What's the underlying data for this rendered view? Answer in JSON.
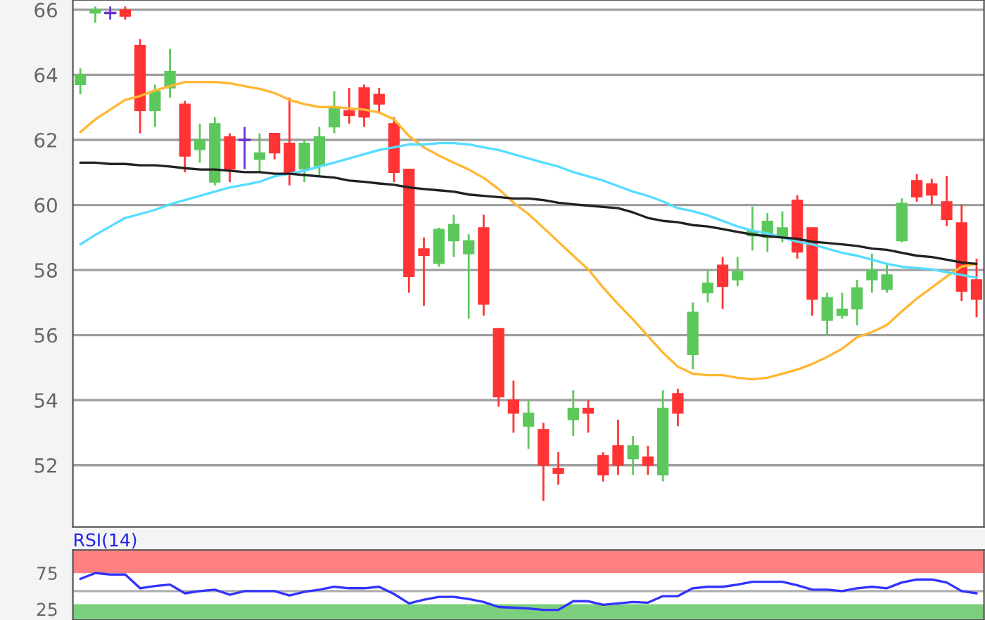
{
  "chart_data": [
    {
      "type": "candlestick",
      "categories": [
        null,
        null,
        null,
        null,
        null,
        null,
        null,
        null,
        null,
        null,
        null,
        null,
        null,
        null,
        null,
        null,
        null,
        null,
        null,
        null,
        null,
        null,
        null,
        null,
        null,
        null,
        null,
        null,
        null,
        null,
        null,
        null,
        null,
        null,
        null,
        null,
        null,
        null,
        null,
        null,
        null,
        null,
        null,
        null,
        null,
        null,
        null,
        null,
        null,
        null,
        null,
        null,
        null,
        null,
        null,
        null,
        null,
        null,
        null,
        null,
        null
      ],
      "ohlc": [
        [
          63.7,
          64.2,
          63.4,
          64.0
        ],
        [
          65.9,
          66.1,
          65.6,
          66.0
        ],
        [
          65.9,
          66.1,
          65.7,
          65.9
        ],
        [
          66.0,
          66.1,
          65.7,
          65.8
        ],
        [
          64.9,
          65.1,
          62.2,
          62.9
        ],
        [
          62.9,
          63.7,
          62.4,
          63.5
        ],
        [
          63.6,
          64.8,
          63.3,
          64.1
        ],
        [
          63.1,
          63.2,
          61.0,
          61.5
        ],
        [
          61.7,
          62.5,
          61.3,
          62.0
        ],
        [
          60.7,
          62.7,
          60.6,
          62.5
        ],
        [
          62.1,
          62.2,
          60.7,
          61.1
        ],
        [
          62.0,
          62.4,
          61.1,
          62.0
        ],
        [
          61.4,
          62.2,
          61.0,
          61.6
        ],
        [
          62.2,
          62.2,
          61.4,
          61.6
        ],
        [
          61.9,
          63.3,
          60.6,
          61.0
        ],
        [
          61.1,
          62.0,
          60.7,
          61.9
        ],
        [
          61.2,
          62.4,
          60.9,
          62.1
        ],
        [
          62.4,
          63.5,
          62.2,
          63.0
        ],
        [
          62.9,
          63.6,
          62.5,
          62.75
        ],
        [
          63.6,
          63.7,
          62.4,
          62.7
        ],
        [
          63.4,
          63.6,
          62.8,
          63.1
        ],
        [
          62.5,
          62.7,
          60.7,
          61.0
        ],
        [
          61.1,
          61.1,
          57.3,
          57.8
        ],
        [
          58.65,
          59.0,
          56.9,
          58.45
        ],
        [
          58.2,
          59.3,
          58.1,
          59.25
        ],
        [
          58.9,
          59.7,
          58.4,
          59.4
        ],
        [
          58.5,
          59.1,
          56.5,
          58.9
        ],
        [
          59.3,
          59.7,
          56.6,
          56.95
        ],
        [
          56.2,
          56.2,
          53.8,
          54.1
        ],
        [
          54.0,
          54.6,
          53.0,
          53.6
        ],
        [
          53.2,
          54.0,
          52.5,
          53.6
        ],
        [
          53.1,
          53.3,
          50.9,
          52.0
        ],
        [
          51.9,
          52.4,
          51.4,
          51.75
        ],
        [
          53.4,
          54.3,
          52.9,
          53.75
        ],
        [
          53.75,
          54.0,
          53.0,
          53.6
        ],
        [
          52.3,
          52.4,
          51.5,
          51.7
        ],
        [
          52.6,
          53.4,
          51.7,
          52.0
        ],
        [
          52.2,
          52.9,
          51.7,
          52.6
        ],
        [
          52.25,
          52.6,
          51.7,
          52.0
        ],
        [
          51.7,
          54.3,
          51.5,
          53.75
        ],
        [
          54.2,
          54.35,
          53.2,
          53.6
        ],
        [
          55.4,
          57.0,
          54.95,
          56.7
        ],
        [
          57.3,
          58.0,
          57.0,
          57.6
        ],
        [
          58.15,
          58.4,
          56.8,
          57.5
        ],
        [
          57.7,
          58.4,
          57.5,
          57.95
        ],
        [
          59.05,
          59.95,
          58.6,
          59.2
        ],
        [
          59.0,
          59.75,
          58.55,
          59.5
        ],
        [
          59.0,
          59.8,
          58.85,
          59.3
        ],
        [
          60.15,
          60.3,
          58.35,
          58.55
        ],
        [
          59.3,
          59.3,
          56.6,
          57.1
        ],
        [
          56.45,
          57.3,
          56.0,
          57.15
        ],
        [
          56.6,
          57.3,
          56.5,
          56.8
        ],
        [
          56.8,
          57.7,
          56.3,
          57.45
        ],
        [
          57.7,
          58.5,
          57.3,
          58.0
        ],
        [
          57.4,
          58.2,
          57.3,
          57.85
        ],
        [
          58.9,
          60.2,
          58.85,
          60.05
        ],
        [
          60.75,
          60.95,
          60.1,
          60.25
        ],
        [
          60.65,
          60.8,
          60.0,
          60.3
        ],
        [
          60.1,
          60.9,
          59.35,
          59.55
        ],
        [
          59.45,
          60.0,
          57.05,
          57.35
        ],
        [
          57.7,
          58.35,
          56.55,
          57.1
        ]
      ],
      "colors": [
        "#5cc85c",
        "#5cc85c",
        "#6633cc",
        "#ff3333",
        "#ff3333",
        "#5cc85c",
        "#5cc85c",
        "#ff3333",
        "#5cc85c",
        "#5cc85c",
        "#ff3333",
        "#6633cc",
        "#5cc85c",
        "#ff3333",
        "#ff3333",
        "#5cc85c",
        "#5cc85c",
        "#5cc85c",
        "#ff3333",
        "#ff3333",
        "#ff3333",
        "#ff3333",
        "#ff3333",
        "#ff3333",
        "#5cc85c",
        "#5cc85c",
        "#5cc85c",
        "#ff3333",
        "#ff3333",
        "#ff3333",
        "#5cc85c",
        "#ff3333",
        "#ff3333",
        "#5cc85c",
        "#ff3333",
        "#ff3333",
        "#ff3333",
        "#5cc85c",
        "#ff3333",
        "#5cc85c",
        "#ff3333",
        "#5cc85c",
        "#5cc85c",
        "#ff3333",
        "#5cc85c",
        "#5cc85c",
        "#5cc85c",
        "#5cc85c",
        "#ff3333",
        "#ff3333",
        "#5cc85c",
        "#5cc85c",
        "#5cc85c",
        "#5cc85c",
        "#5cc85c",
        "#5cc85c",
        "#ff3333",
        "#ff3333",
        "#ff3333",
        "#ff3333",
        "#ff3333"
      ],
      "series": [
        {
          "type": "line",
          "color": "#ffb732",
          "values": [
            62.24,
            62.63,
            62.93,
            63.23,
            63.35,
            63.52,
            63.65,
            63.78,
            63.78,
            63.78,
            63.74,
            63.65,
            63.57,
            63.44,
            63.23,
            63.1,
            63.01,
            63.01,
            62.97,
            62.93,
            62.84,
            62.63,
            62.12,
            61.77,
            61.52,
            61.3,
            61.09,
            60.83,
            60.49,
            60.07,
            59.72,
            59.3,
            58.87,
            58.44,
            58.02,
            57.46,
            56.95,
            56.48,
            55.97,
            55.46,
            55.03,
            54.81,
            54.77,
            54.77,
            54.69,
            54.64,
            54.69,
            54.81,
            54.94,
            55.11,
            55.33,
            55.58,
            55.93,
            56.09,
            56.31,
            56.73,
            57.12,
            57.46,
            57.8,
            58.1,
            58.19
          ]
        },
        {
          "type": "line",
          "color": "#55ddff",
          "values": [
            58.79,
            59.08,
            59.34,
            59.6,
            59.72,
            59.85,
            60.02,
            60.15,
            60.28,
            60.41,
            60.54,
            60.62,
            60.71,
            60.88,
            60.96,
            61.05,
            61.18,
            61.3,
            61.43,
            61.56,
            61.69,
            61.77,
            61.86,
            61.86,
            61.9,
            61.9,
            61.86,
            61.77,
            61.69,
            61.56,
            61.43,
            61.3,
            61.18,
            61.01,
            60.88,
            60.75,
            60.58,
            60.41,
            60.28,
            60.11,
            59.9,
            59.81,
            59.68,
            59.51,
            59.34,
            59.21,
            59.13,
            59.0,
            58.87,
            58.79,
            58.66,
            58.53,
            58.44,
            58.32,
            58.19,
            58.1,
            58.06,
            58.02,
            57.93,
            57.85,
            57.76
          ]
        },
        {
          "type": "line",
          "color": "#222222",
          "values": [
            61.3,
            61.3,
            61.26,
            61.26,
            61.22,
            61.22,
            61.18,
            61.13,
            61.09,
            61.09,
            61.05,
            61.01,
            61.01,
            60.96,
            60.96,
            60.92,
            60.88,
            60.84,
            60.75,
            60.71,
            60.66,
            60.62,
            60.54,
            60.49,
            60.45,
            60.41,
            60.32,
            60.28,
            60.24,
            60.2,
            60.2,
            60.15,
            60.07,
            60.02,
            59.98,
            59.94,
            59.9,
            59.77,
            59.6,
            59.51,
            59.47,
            59.38,
            59.34,
            59.26,
            59.17,
            59.09,
            59.04,
            59.0,
            58.96,
            58.87,
            58.83,
            58.79,
            58.74,
            58.66,
            58.62,
            58.53,
            58.44,
            58.4,
            58.32,
            58.23,
            58.19
          ]
        }
      ],
      "ylim": [
        50.1,
        66.3
      ],
      "yticks": [
        52,
        54,
        56,
        58,
        60,
        62,
        64,
        66
      ],
      "grid": "y",
      "tick_labels": "y"
    },
    {
      "type": "line",
      "title": "RSI(14)",
      "categories": [
        null,
        null,
        null,
        null,
        null,
        null,
        null,
        null,
        null,
        null,
        null,
        null,
        null,
        null,
        null,
        null,
        null,
        null,
        null,
        null,
        null,
        null,
        null,
        null,
        null,
        null,
        null,
        null,
        null,
        null,
        null,
        null,
        null,
        null,
        null,
        null,
        null,
        null,
        null,
        null,
        null,
        null,
        null,
        null,
        null,
        null,
        null,
        null,
        null,
        null,
        null,
        null,
        null,
        null,
        null,
        null,
        null,
        null,
        null,
        null,
        null
      ],
      "series": [
        {
          "color": "#3333ff",
          "values": [
            67,
            75,
            73,
            73,
            54,
            57,
            59,
            47,
            50,
            52,
            45,
            50,
            50,
            50,
            44,
            49,
            52,
            56,
            54,
            54,
            56,
            46,
            33,
            38,
            42,
            42,
            39,
            35,
            28,
            27,
            26,
            24,
            24,
            36,
            36,
            31,
            33,
            35,
            34,
            43,
            43,
            54,
            56,
            56,
            59,
            63,
            63,
            63,
            58,
            52,
            52,
            50,
            54,
            56,
            54,
            62,
            66,
            66,
            62,
            50,
            47
          ]
        }
      ],
      "ylim": [
        10,
        107
      ],
      "yticks": [
        25,
        75
      ],
      "bands": [
        {
          "axis": "y",
          "from": 75,
          "to": 107,
          "color": "#ff8080"
        },
        {
          "axis": "y",
          "from": 10,
          "to": 32,
          "color": "#7ccf7c"
        }
      ],
      "ref_lines": [
        {
          "axis": "y",
          "value": 50,
          "color": "#b0b0b0"
        }
      ],
      "tick_labels": "y"
    }
  ]
}
